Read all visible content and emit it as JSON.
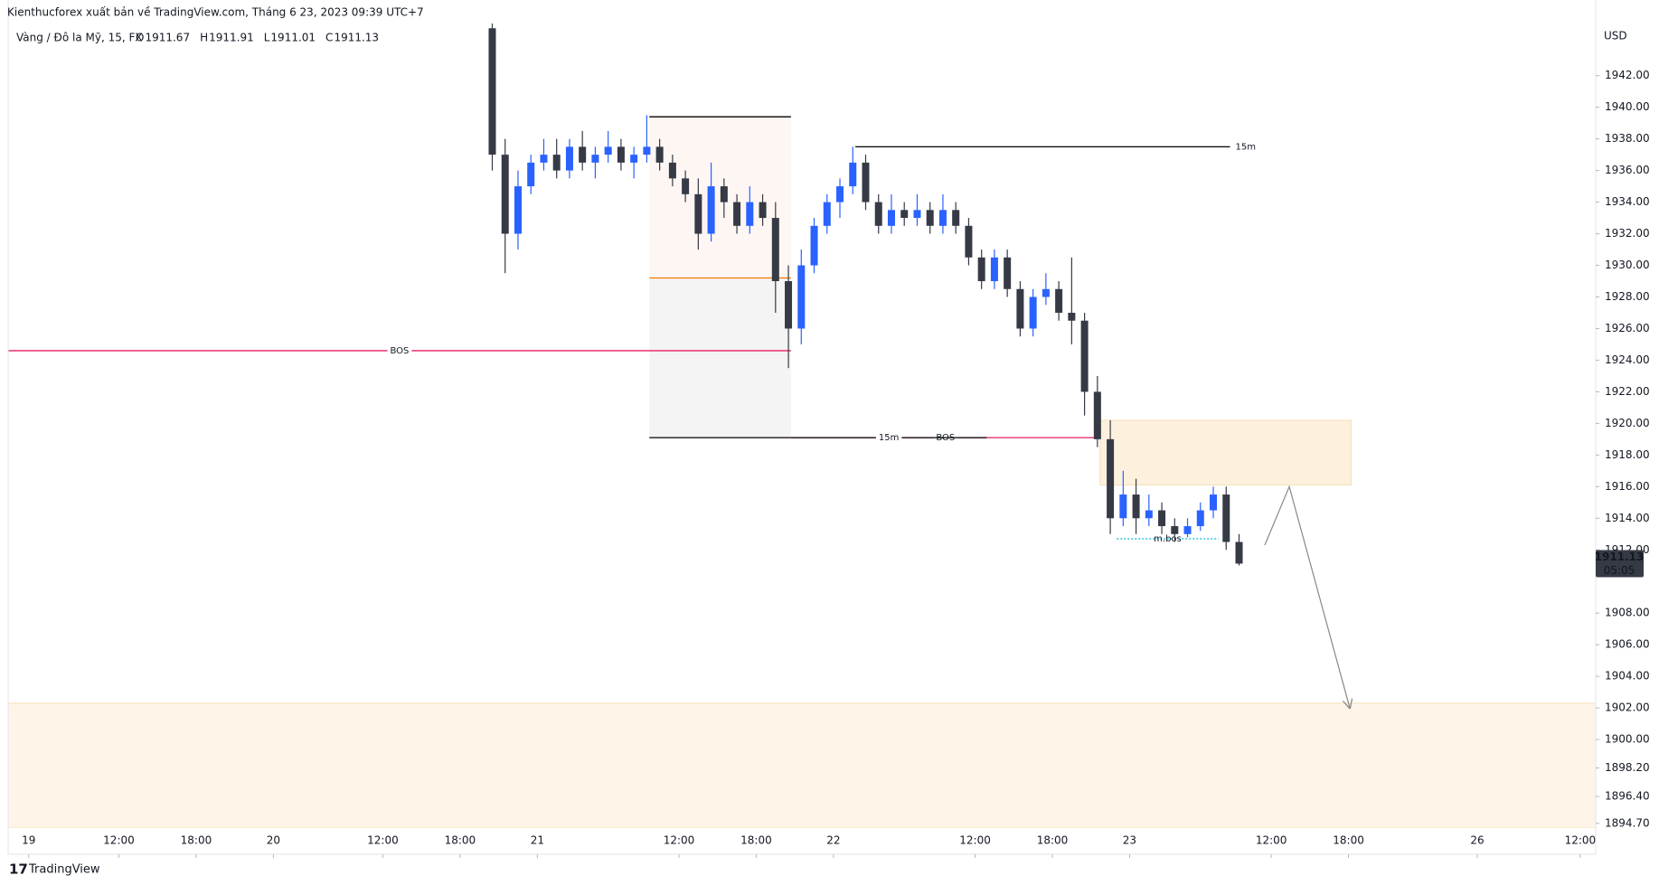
{
  "header": {
    "publisher": "Kienthucforex xuất bản về TradingView.com, Tháng 6 23, 2023 09:39 UTC+7",
    "brand": "TradingView"
  },
  "chart_data": {
    "type": "candlestick",
    "symbol": "Vàng / Đô la Mỹ, 15, FX",
    "ohlc_legend": [
      {
        "label": "O",
        "value": 1911.67
      },
      {
        "label": "H",
        "value": 1911.91
      },
      {
        "label": "L",
        "value": 1911.01
      },
      {
        "label": "C",
        "value": 1911.13
      }
    ],
    "currency": "USD",
    "last_price": 1911.13,
    "countdown": "05:05",
    "up_color": "#2962ff",
    "down_color": "#363a45",
    "x": [
      36,
      37,
      38,
      39,
      40,
      41,
      42,
      43,
      44,
      45,
      46,
      47,
      48,
      49,
      50,
      51,
      52,
      53,
      54,
      55,
      56,
      57,
      58,
      59,
      60,
      61,
      62,
      63,
      64,
      65,
      66,
      67,
      68,
      69,
      70,
      71,
      72,
      73,
      74,
      75,
      76,
      77,
      78,
      79,
      80,
      81,
      82,
      83,
      84,
      85,
      86,
      87,
      88,
      89,
      90,
      91,
      92,
      93,
      94
    ],
    "open": [
      1945,
      1937,
      1932,
      1935,
      1936.5,
      1937,
      1936,
      1937.5,
      1936.5,
      1937,
      1937.5,
      1936.5,
      1937,
      1937.5,
      1936.5,
      1935.5,
      1934.5,
      1932,
      1935,
      1934,
      1932.5,
      1934,
      1933,
      1929,
      1926,
      1930,
      1932.5,
      1934,
      1935,
      1936.5,
      1934,
      1932.5,
      1933.5,
      1933,
      1933.5,
      1932.5,
      1933.5,
      1932.5,
      1930.5,
      1929,
      1930.5,
      1928.5,
      1926,
      1928,
      1928.5,
      1927,
      1926.5,
      1922,
      1919,
      1914,
      1915.5,
      1914,
      1914.5,
      1913.5,
      1913,
      1913.5,
      1914.5,
      1915.5,
      1912.5
    ],
    "high": [
      1946,
      1938,
      1936,
      1937,
      1938,
      1938,
      1938,
      1938.5,
      1937.5,
      1938.5,
      1938,
      1937.5,
      1939.5,
      1938,
      1937,
      1936,
      1935.5,
      1936.5,
      1935.5,
      1934.5,
      1935,
      1934.5,
      1934,
      1930,
      1931,
      1933,
      1934.5,
      1935.5,
      1937.5,
      1937,
      1934.5,
      1934.5,
      1934,
      1934.5,
      1934,
      1934.5,
      1934,
      1933,
      1931,
      1931,
      1931,
      1929,
      1928.5,
      1929.5,
      1929,
      1930.5,
      1927,
      1923,
      1920.2,
      1917,
      1916.5,
      1915.5,
      1915,
      1914,
      1914,
      1915,
      1916,
      1916,
      1913
    ],
    "low": [
      1936,
      1929.5,
      1931,
      1934.5,
      1936,
      1935.5,
      1935.5,
      1936,
      1935.5,
      1936.5,
      1936,
      1935.5,
      1936.5,
      1936,
      1935,
      1934,
      1931,
      1931.5,
      1933,
      1932,
      1932,
      1932.5,
      1927,
      1923.5,
      1925,
      1929.5,
      1932,
      1933,
      1934.5,
      1933.5,
      1932,
      1932,
      1932.5,
      1932.5,
      1932,
      1932,
      1932,
      1930,
      1928.5,
      1928.5,
      1928,
      1925.5,
      1925.5,
      1927.5,
      1926.5,
      1925,
      1920.5,
      1918.5,
      1913,
      1913.5,
      1913,
      1913.5,
      1913,
      1912.5,
      1912.8,
      1913.2,
      1914,
      1912,
      1911.01
    ],
    "close": [
      1937,
      1932,
      1935,
      1936.5,
      1937,
      1936,
      1937.5,
      1936.5,
      1937,
      1937.5,
      1936.5,
      1937,
      1937.5,
      1936.5,
      1935.5,
      1934.5,
      1932,
      1935,
      1934,
      1932.5,
      1934,
      1933,
      1929,
      1926,
      1930,
      1932.5,
      1934,
      1935,
      1936.5,
      1934,
      1932.5,
      1933.5,
      1933,
      1933.5,
      1932.5,
      1933.5,
      1932.5,
      1930.5,
      1929,
      1930.5,
      1928.5,
      1926,
      1928,
      1928.5,
      1927,
      1926.5,
      1922,
      1919,
      1914,
      1915.5,
      1914,
      1914.5,
      1913.5,
      1913,
      1913.5,
      1914.5,
      1915.5,
      1912.5,
      1911.13
    ],
    "xlim": [
      -1.6,
      121.7
    ],
    "ylim": [
      1894.4,
      1945.3
    ],
    "yticks": [
      {
        "value": 1942,
        "label": "1942.00"
      },
      {
        "value": 1940,
        "label": "1940.00"
      },
      {
        "value": 1938,
        "label": "1938.00"
      },
      {
        "value": 1936,
        "label": "1936.00"
      },
      {
        "value": 1934,
        "label": "1934.00"
      },
      {
        "value": 1932,
        "label": "1932.00"
      },
      {
        "value": 1930,
        "label": "1930.00"
      },
      {
        "value": 1928,
        "label": "1928.00"
      },
      {
        "value": 1926,
        "label": "1926.00"
      },
      {
        "value": 1924,
        "label": "1924.00"
      },
      {
        "value": 1922,
        "label": "1922.00"
      },
      {
        "value": 1920,
        "label": "1920.00"
      },
      {
        "value": 1918,
        "label": "1918.00"
      },
      {
        "value": 1916,
        "label": "1916.00"
      },
      {
        "value": 1914,
        "label": "1914.00"
      },
      {
        "value": 1912,
        "label": "1912.00"
      },
      {
        "value": 1908,
        "label": "1908.00"
      },
      {
        "value": 1906,
        "label": "1906.00"
      },
      {
        "value": 1904,
        "label": "1904.00"
      },
      {
        "value": 1902,
        "label": "1902.00"
      },
      {
        "value": 1900,
        "label": "1900.00"
      },
      {
        "value": 1898.2,
        "label": "1898.20"
      },
      {
        "value": 1896.4,
        "label": "1896.40"
      },
      {
        "value": 1894.7,
        "label": "1894.70"
      }
    ],
    "xticks": [
      {
        "value": 0,
        "label": "19"
      },
      {
        "value": 7,
        "label": "12:00"
      },
      {
        "value": 13,
        "label": "18:00"
      },
      {
        "value": 19,
        "label": "20"
      },
      {
        "value": 27.5,
        "label": "12:00"
      },
      {
        "value": 33.5,
        "label": "18:00"
      },
      {
        "value": 39.5,
        "label": "21"
      },
      {
        "value": 50.5,
        "label": "12:00"
      },
      {
        "value": 56.5,
        "label": "18:00"
      },
      {
        "value": 62.5,
        "label": "22"
      },
      {
        "value": 73.5,
        "label": "12:00"
      },
      {
        "value": 79.5,
        "label": "18:00"
      },
      {
        "value": 85.5,
        "label": "23"
      },
      {
        "value": 96.5,
        "label": "12:00"
      },
      {
        "value": 102.5,
        "label": "18:00"
      },
      {
        "value": 112.5,
        "label": "26"
      },
      {
        "value": 120.5,
        "label": "12:00"
      }
    ],
    "zones": [
      {
        "x": [
          48.2,
          59.2
        ],
        "y": [
          1929.3,
          1939.4
        ],
        "color": "#fdf6f3"
      },
      {
        "x": [
          48.2,
          59.2
        ],
        "y": [
          1919.1,
          1929.3
        ],
        "color": "#f4f4f4"
      },
      {
        "x": [
          83.2,
          102.7
        ],
        "y": [
          1916.1,
          1920.2
        ],
        "color": "#fdf1de"
      },
      {
        "x": [
          -1.6,
          121.7
        ],
        "y": [
          1894.4,
          1902.3
        ],
        "color": "#fef5e8"
      }
    ],
    "lines": [
      {
        "x": [
          -1.6,
          59.2
        ],
        "y": 1924.6,
        "color": "#e91e63",
        "label": "BOS",
        "label_pos": "middle",
        "style": "solid"
      },
      {
        "x": [
          48.2,
          59.2
        ],
        "y": 1939.4,
        "color": "#000000",
        "style": "solid"
      },
      {
        "x": [
          48.2,
          59.2
        ],
        "y": 1929.2,
        "color": "#f57c00",
        "style": "solid"
      },
      {
        "x": [
          48.2,
          59.2
        ],
        "y": 1919.1,
        "color": "#000000",
        "style": "solid"
      },
      {
        "x": [
          59.2,
          83.2
        ],
        "y": 1919.1,
        "color": "#e91e63",
        "label": "BOS",
        "label_pos": "middle",
        "style": "solid"
      },
      {
        "x": [
          59.2,
          74.4
        ],
        "y": 1919.1,
        "color": "#000000",
        "label": "15m",
        "text_color": "#e91e63",
        "label_pos": "middle",
        "style": "solid"
      },
      {
        "x": [
          64.2,
          93.3
        ],
        "y": 1937.5,
        "color": "#000000",
        "label": "15m",
        "text_color": "#e91e63",
        "label_pos": "end",
        "style": "solid"
      },
      {
        "x": [
          84.5,
          92.4
        ],
        "y": 1912.7,
        "color": "#00bcd4",
        "label": "m.bos",
        "label_pos": "middle",
        "style": "dotted"
      }
    ],
    "projection": {
      "x": [
        96.0,
        97.9,
        102.6
      ],
      "y": [
        1912.3,
        1916,
        1902
      ],
      "color": "#888888"
    }
  }
}
